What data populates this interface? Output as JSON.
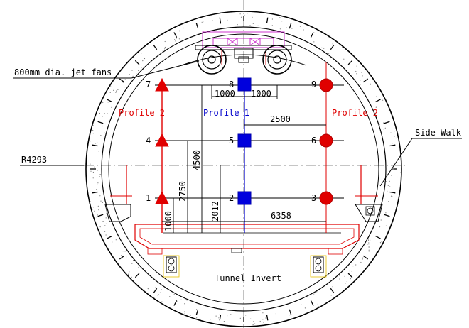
{
  "annotations": {
    "jet_fans": "800mm dia. jet fans",
    "radius": "R4293",
    "side_walk": "Side Walk",
    "tunnel_invert": "Tunnel Invert"
  },
  "profiles": {
    "left": "Profile 2",
    "center": "Profile 1",
    "right": "Profile 2"
  },
  "points": {
    "p1": "1",
    "p2": "2",
    "p3": "3",
    "p4": "4",
    "p5": "5",
    "p6": "6",
    "p7": "7",
    "p8": "8",
    "p9": "9"
  },
  "dimensions": {
    "d1000_left": "1000",
    "d1000_right": "1000",
    "d2500": "2500",
    "d4500": "4500",
    "d2750": "2750",
    "d2012": "2012",
    "d1000_vert": "1000",
    "d6358": "6358"
  },
  "colors": {
    "profile2": "#e00000",
    "profile1": "#0000cc",
    "structure": "#e00000",
    "outline": "#000000",
    "fan": "#cc33cc"
  }
}
